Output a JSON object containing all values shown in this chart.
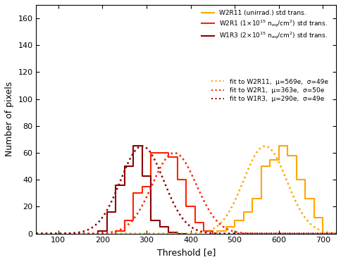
{
  "title": "",
  "xlabel": "Threshold [e]",
  "ylabel": "Number of pixels",
  "xlim": [
    50,
    730
  ],
  "ylim": [
    0,
    170
  ],
  "yticks": [
    0,
    20,
    40,
    60,
    80,
    100,
    120,
    140,
    160
  ],
  "xticks": [
    100,
    200,
    300,
    400,
    500,
    600,
    700
  ],
  "bg_color": "#ffffff",
  "hist_W2R11": {
    "mu": 569,
    "sigma": 49,
    "color": "#FFA500",
    "bin_width": 20,
    "bins_start": 460,
    "counts": [
      2,
      5,
      10,
      16,
      26,
      50,
      55,
      65,
      58,
      40,
      26,
      12
    ]
  },
  "hist_W2R1": {
    "mu": 363,
    "sigma": 50,
    "color": "#FF2200",
    "bin_width": 20,
    "bins_start": 230,
    "counts": [
      2,
      10,
      30,
      35,
      60,
      60,
      57,
      40,
      20,
      8,
      2
    ]
  },
  "hist_W1R3": {
    "mu": 290,
    "sigma": 49,
    "color": "#8B0000",
    "bin_width": 20,
    "bins_start": 190,
    "counts": [
      2,
      16,
      36,
      50,
      65,
      43,
      10,
      5,
      1,
      0
    ]
  },
  "legend_hist_labels": [
    "W2R11 (unirrad.) std trans.",
    "W2R1 (1×10$^{15}$ n$_{eq}$/cm$^2$) std trans.",
    "W1R3 (2×10$^{15}$ n$_{eq}$/cm$^2$) std trans."
  ],
  "legend_fit_labels": [
    "fit to W2R11,  μ=569e,  σ=49e",
    "fit to W2R1,  μ=363e,  σ=50e",
    "fit to W1R3,  μ=290e,  σ=49e"
  ],
  "hist_colors": [
    "#FFA500",
    "#FF2200",
    "#8B0000"
  ]
}
